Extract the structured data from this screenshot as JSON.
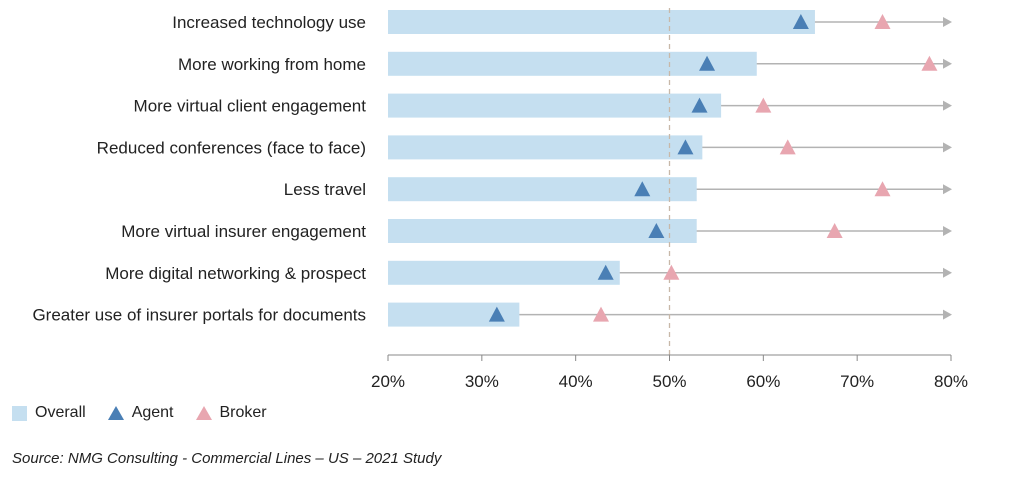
{
  "chart_data": {
    "type": "bar",
    "orientation": "horizontal",
    "categories": [
      "Increased technology use",
      "More working from home",
      "More virtual client engagement",
      "Reduced conferences (face to face)",
      "Less travel",
      "More virtual insurer engagement",
      "More digital networking & prospect",
      "Greater use of insurer portals for documents"
    ],
    "series": [
      {
        "name": "Overall",
        "kind": "bar",
        "color": "#c5dff0",
        "values": [
          65.5,
          59.3,
          55.5,
          53.5,
          52.9,
          52.9,
          44.7,
          34.0
        ]
      },
      {
        "name": "Agent",
        "kind": "marker",
        "color": "#4a7fb5",
        "values": [
          64.0,
          54.0,
          53.2,
          51.7,
          47.1,
          48.6,
          43.2,
          31.6
        ]
      },
      {
        "name": "Broker",
        "kind": "marker",
        "color": "#e8a6b0",
        "values": [
          72.7,
          77.7,
          60.0,
          62.6,
          72.7,
          67.6,
          50.2,
          42.7
        ]
      }
    ],
    "xlim": [
      20,
      80
    ],
    "xticks": [
      "20%",
      "30%",
      "40%",
      "50%",
      "60%",
      "70%",
      "80%"
    ],
    "reference_line": 50,
    "legend_position": "bottom-left",
    "source": "Source: NMG Consulting - Commercial Lines – US – 2021 Study"
  }
}
